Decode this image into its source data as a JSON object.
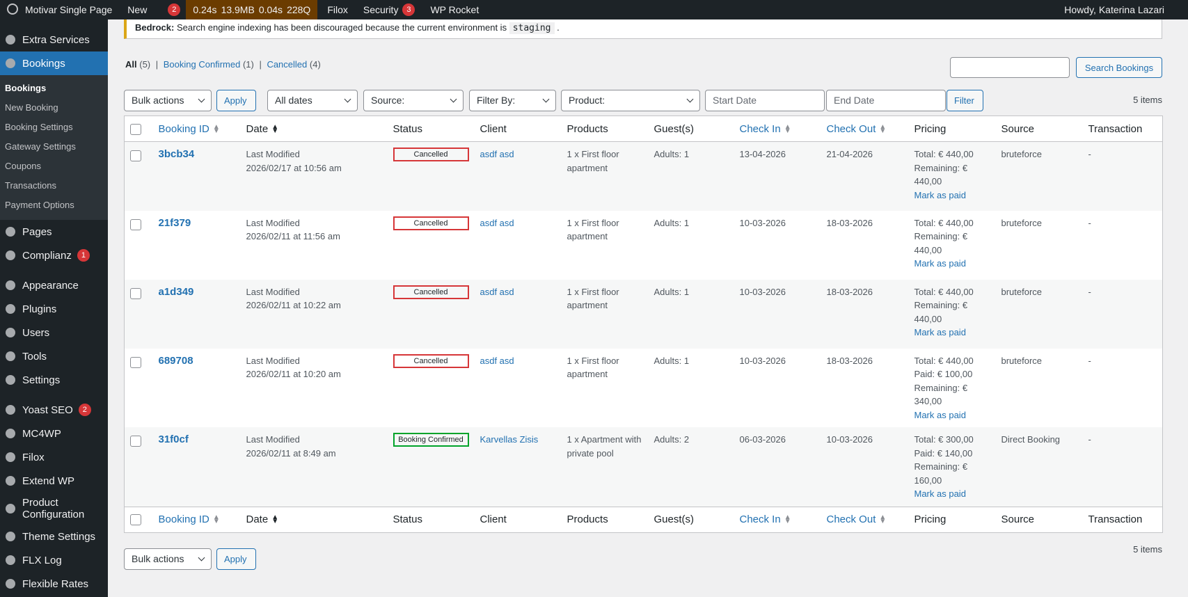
{
  "admin_bar": {
    "site": "Motivar Single Page",
    "new": "New",
    "yoast_badge": "2",
    "perf": [
      "0.24s",
      "13.9MB",
      "0.04s",
      "228Q"
    ],
    "filox": "Filox",
    "security": "Security",
    "security_badge": "3",
    "rocket": "WP Rocket",
    "howdy": "Howdy, Katerina Lazari"
  },
  "notice": {
    "label": "Bedrock:",
    "text": "Search engine indexing has been discouraged because the current environment is",
    "code": "staging",
    "end": "."
  },
  "sidebar": {
    "items": [
      {
        "label": "Extra Services"
      },
      {
        "label": "Bookings",
        "current": true,
        "submenu": [
          "Bookings",
          "New Booking",
          "Booking Settings",
          "Gateway Settings",
          "Coupons",
          "Transactions",
          "Payment Options"
        ]
      },
      {
        "label": "Pages"
      },
      {
        "label": "Complianz",
        "badge": "1",
        "separator_after": true
      },
      {
        "label": "Appearance"
      },
      {
        "label": "Plugins"
      },
      {
        "label": "Users"
      },
      {
        "label": "Tools"
      },
      {
        "label": "Settings",
        "separator_after": true
      },
      {
        "label": "Yoast SEO",
        "badge": "2"
      },
      {
        "label": "MC4WP"
      },
      {
        "label": "Filox"
      },
      {
        "label": "Extend WP"
      },
      {
        "label": "Product Configuration"
      },
      {
        "label": "Theme Settings"
      },
      {
        "label": "FLX Log"
      },
      {
        "label": "Flexible Rates"
      }
    ]
  },
  "views": [
    {
      "label": "All",
      "count": "(5)",
      "current": true
    },
    {
      "label": "Booking Confirmed",
      "count": "(1)"
    },
    {
      "label": "Cancelled",
      "count": "(4)"
    }
  ],
  "search_button": "Search Bookings",
  "filters": {
    "bulk": "Bulk actions",
    "apply": "Apply",
    "dates": "All dates",
    "source": "Source:",
    "filter_by": "Filter By:",
    "product": "Product:",
    "start": "Start Date",
    "end": "End Date",
    "filter": "Filter",
    "items": "5 items"
  },
  "columns": [
    {
      "label": "Booking ID",
      "sortable": true
    },
    {
      "label": "Date",
      "sortable": true,
      "sorted": true
    },
    {
      "label": "Status"
    },
    {
      "label": "Client"
    },
    {
      "label": "Products"
    },
    {
      "label": "Guest(s)"
    },
    {
      "label": "Check In",
      "sortable": true
    },
    {
      "label": "Check Out",
      "sortable": true
    },
    {
      "label": "Pricing"
    },
    {
      "label": "Source"
    },
    {
      "label": "Transaction"
    }
  ],
  "rows": [
    {
      "id": "3bcb34",
      "modified": "Last Modified",
      "date": "2026/02/17 at 10:56 am",
      "status": "Cancelled",
      "status_color": "#d63638",
      "client": "asdf asd",
      "products": "1 x First floor apartment",
      "guests": "Adults: 1",
      "check_in": "13-04-2026",
      "check_out": "21-04-2026",
      "pricing": [
        "Total: € 440,00",
        "Remaining: € 440,00"
      ],
      "mark_paid": "Mark as paid",
      "source": "bruteforce",
      "transaction": "-"
    },
    {
      "id": "21f379",
      "modified": "Last Modified",
      "date": "2026/02/11 at 11:56 am",
      "status": "Cancelled",
      "status_color": "#d63638",
      "client": "asdf asd",
      "products": "1 x First floor apartment",
      "guests": "Adults: 1",
      "check_in": "10-03-2026",
      "check_out": "18-03-2026",
      "pricing": [
        "Total: € 440,00",
        "Remaining: € 440,00"
      ],
      "mark_paid": "Mark as paid",
      "source": "bruteforce",
      "transaction": "-"
    },
    {
      "id": "a1d349",
      "modified": "Last Modified",
      "date": "2026/02/11 at 10:22 am",
      "status": "Cancelled",
      "status_color": "#d63638",
      "client": "asdf asd",
      "products": "1 x First floor apartment",
      "guests": "Adults: 1",
      "check_in": "10-03-2026",
      "check_out": "18-03-2026",
      "pricing": [
        "Total: € 440,00",
        "Remaining: € 440,00"
      ],
      "mark_paid": "Mark as paid",
      "source": "bruteforce",
      "transaction": "-"
    },
    {
      "id": "689708",
      "modified": "Last Modified",
      "date": "2026/02/11 at 10:20 am",
      "status": "Cancelled",
      "status_color": "#d63638",
      "client": "asdf asd",
      "products": "1 x First floor apartment",
      "guests": "Adults: 1",
      "check_in": "10-03-2026",
      "check_out": "18-03-2026",
      "pricing": [
        "Total: € 440,00",
        "Paid: € 100,00",
        "Remaining: € 340,00"
      ],
      "mark_paid": "Mark as paid",
      "source": "bruteforce",
      "transaction": "-"
    },
    {
      "id": "31f0cf",
      "modified": "Last Modified",
      "date": "2026/02/11 at 8:49 am",
      "status": "Booking Confirmed",
      "status_color": "#00a32a",
      "client": "Karvellas Zisis",
      "products": "1 x Apartment with private pool",
      "guests": "Adults: 2",
      "check_in": "06-03-2026",
      "check_out": "10-03-2026",
      "pricing": [
        "Total: € 300,00",
        "Paid: € 140,00",
        "Remaining: € 160,00"
      ],
      "mark_paid": "Mark as paid",
      "source": "Direct Booking",
      "transaction": "-"
    }
  ]
}
